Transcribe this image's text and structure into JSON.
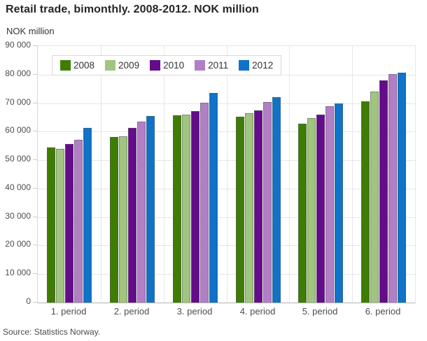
{
  "title": "Retail trade, bimonthly. 2008-2012. NOK million",
  "y_axis_title": "NOK million",
  "source": "Source: Statistics Norway.",
  "chart_data": {
    "type": "bar",
    "title": "Retail trade, bimonthly. 2008-2012. NOK million",
    "xlabel": "",
    "ylabel": "NOK million",
    "categories": [
      "1. period",
      "2. period",
      "3. period",
      "4. period",
      "5. period",
      "6. period"
    ],
    "series": [
      {
        "name": "2008",
        "color": "#3e7d04",
        "values": [
          54500,
          58200,
          65700,
          65300,
          62700,
          70700
        ]
      },
      {
        "name": "2009",
        "color": "#a0c57e",
        "values": [
          54000,
          58300,
          65900,
          66400,
          64700,
          74100
        ]
      },
      {
        "name": "2010",
        "color": "#640c8b",
        "values": [
          55700,
          61200,
          67100,
          67500,
          65900,
          77900
        ]
      },
      {
        "name": "2011",
        "color": "#b27fc6",
        "values": [
          57100,
          63500,
          70100,
          70300,
          68800,
          80200
        ]
      },
      {
        "name": "2012",
        "color": "#0e73c9",
        "values": [
          61200,
          65400,
          73500,
          72100,
          70000,
          80800
        ]
      }
    ],
    "ylim": [
      0,
      90000
    ],
    "ytick_step": 10000,
    "ytick_format": "space-thousands",
    "grid": true,
    "legend_position": "top-left-inside"
  }
}
